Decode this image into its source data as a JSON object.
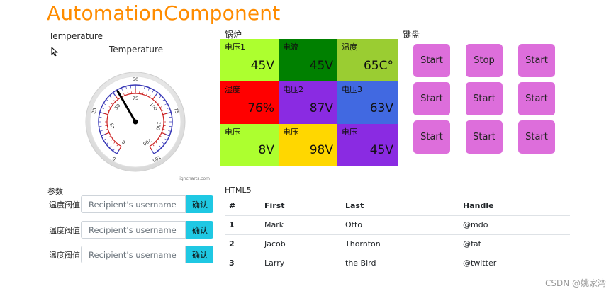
{
  "app_title": "AutomationComponent",
  "gauge": {
    "section_label": "Temperature",
    "title": "Temperature",
    "credit": "Highcharts.com",
    "value": 40,
    "inner_ticks": [
      "0",
      "25",
      "50",
      "75",
      "100",
      "150",
      "200"
    ],
    "outer_ticks": [
      "0",
      "25",
      "50",
      "75",
      "100"
    ]
  },
  "boiler": {
    "section_label": "锅炉",
    "cells": [
      {
        "label": "电压1",
        "value": "45V",
        "color": "#adff2f"
      },
      {
        "label": "电流",
        "value": "45V",
        "color": "#008000"
      },
      {
        "label": "温度",
        "value": "65C°",
        "color": "#9acd32"
      },
      {
        "label": "湿度",
        "value": "76%",
        "color": "#ff0000"
      },
      {
        "label": "电压2",
        "value": "87V",
        "color": "#8a2be2"
      },
      {
        "label": "电压3",
        "value": "63V",
        "color": "#4169e1"
      },
      {
        "label": "电压",
        "value": "8V",
        "color": "#adff2f"
      },
      {
        "label": "电压",
        "value": "98V",
        "color": "#ffd700"
      },
      {
        "label": "电压",
        "value": "45V",
        "color": "#8a2be2"
      }
    ]
  },
  "keyboard": {
    "section_label": "键盘",
    "buttons": [
      "Start",
      "Stop",
      "Start",
      "Start",
      "Start",
      "Start",
      "Start",
      "Start",
      "Start"
    ],
    "color": "#dd6edb"
  },
  "params": {
    "section_label": "参数",
    "rows": [
      {
        "label": "温度阀值",
        "placeholder": "Recipient's username",
        "button": "确认"
      },
      {
        "label": "温度阀值",
        "placeholder": "Recipient's username",
        "button": "确认"
      },
      {
        "label": "温度阀值",
        "placeholder": "Recipient's username",
        "button": "确认"
      }
    ]
  },
  "table": {
    "section_label": "HTML5",
    "headers": [
      "#",
      "First",
      "Last",
      "Handle"
    ],
    "rows": [
      [
        "1",
        "Mark",
        "Otto",
        "@mdo"
      ],
      [
        "2",
        "Jacob",
        "Thornton",
        "@fat"
      ],
      [
        "3",
        "Larry",
        "the Bird",
        "@twitter"
      ]
    ]
  },
  "watermark": "CSDN @姚家湾"
}
